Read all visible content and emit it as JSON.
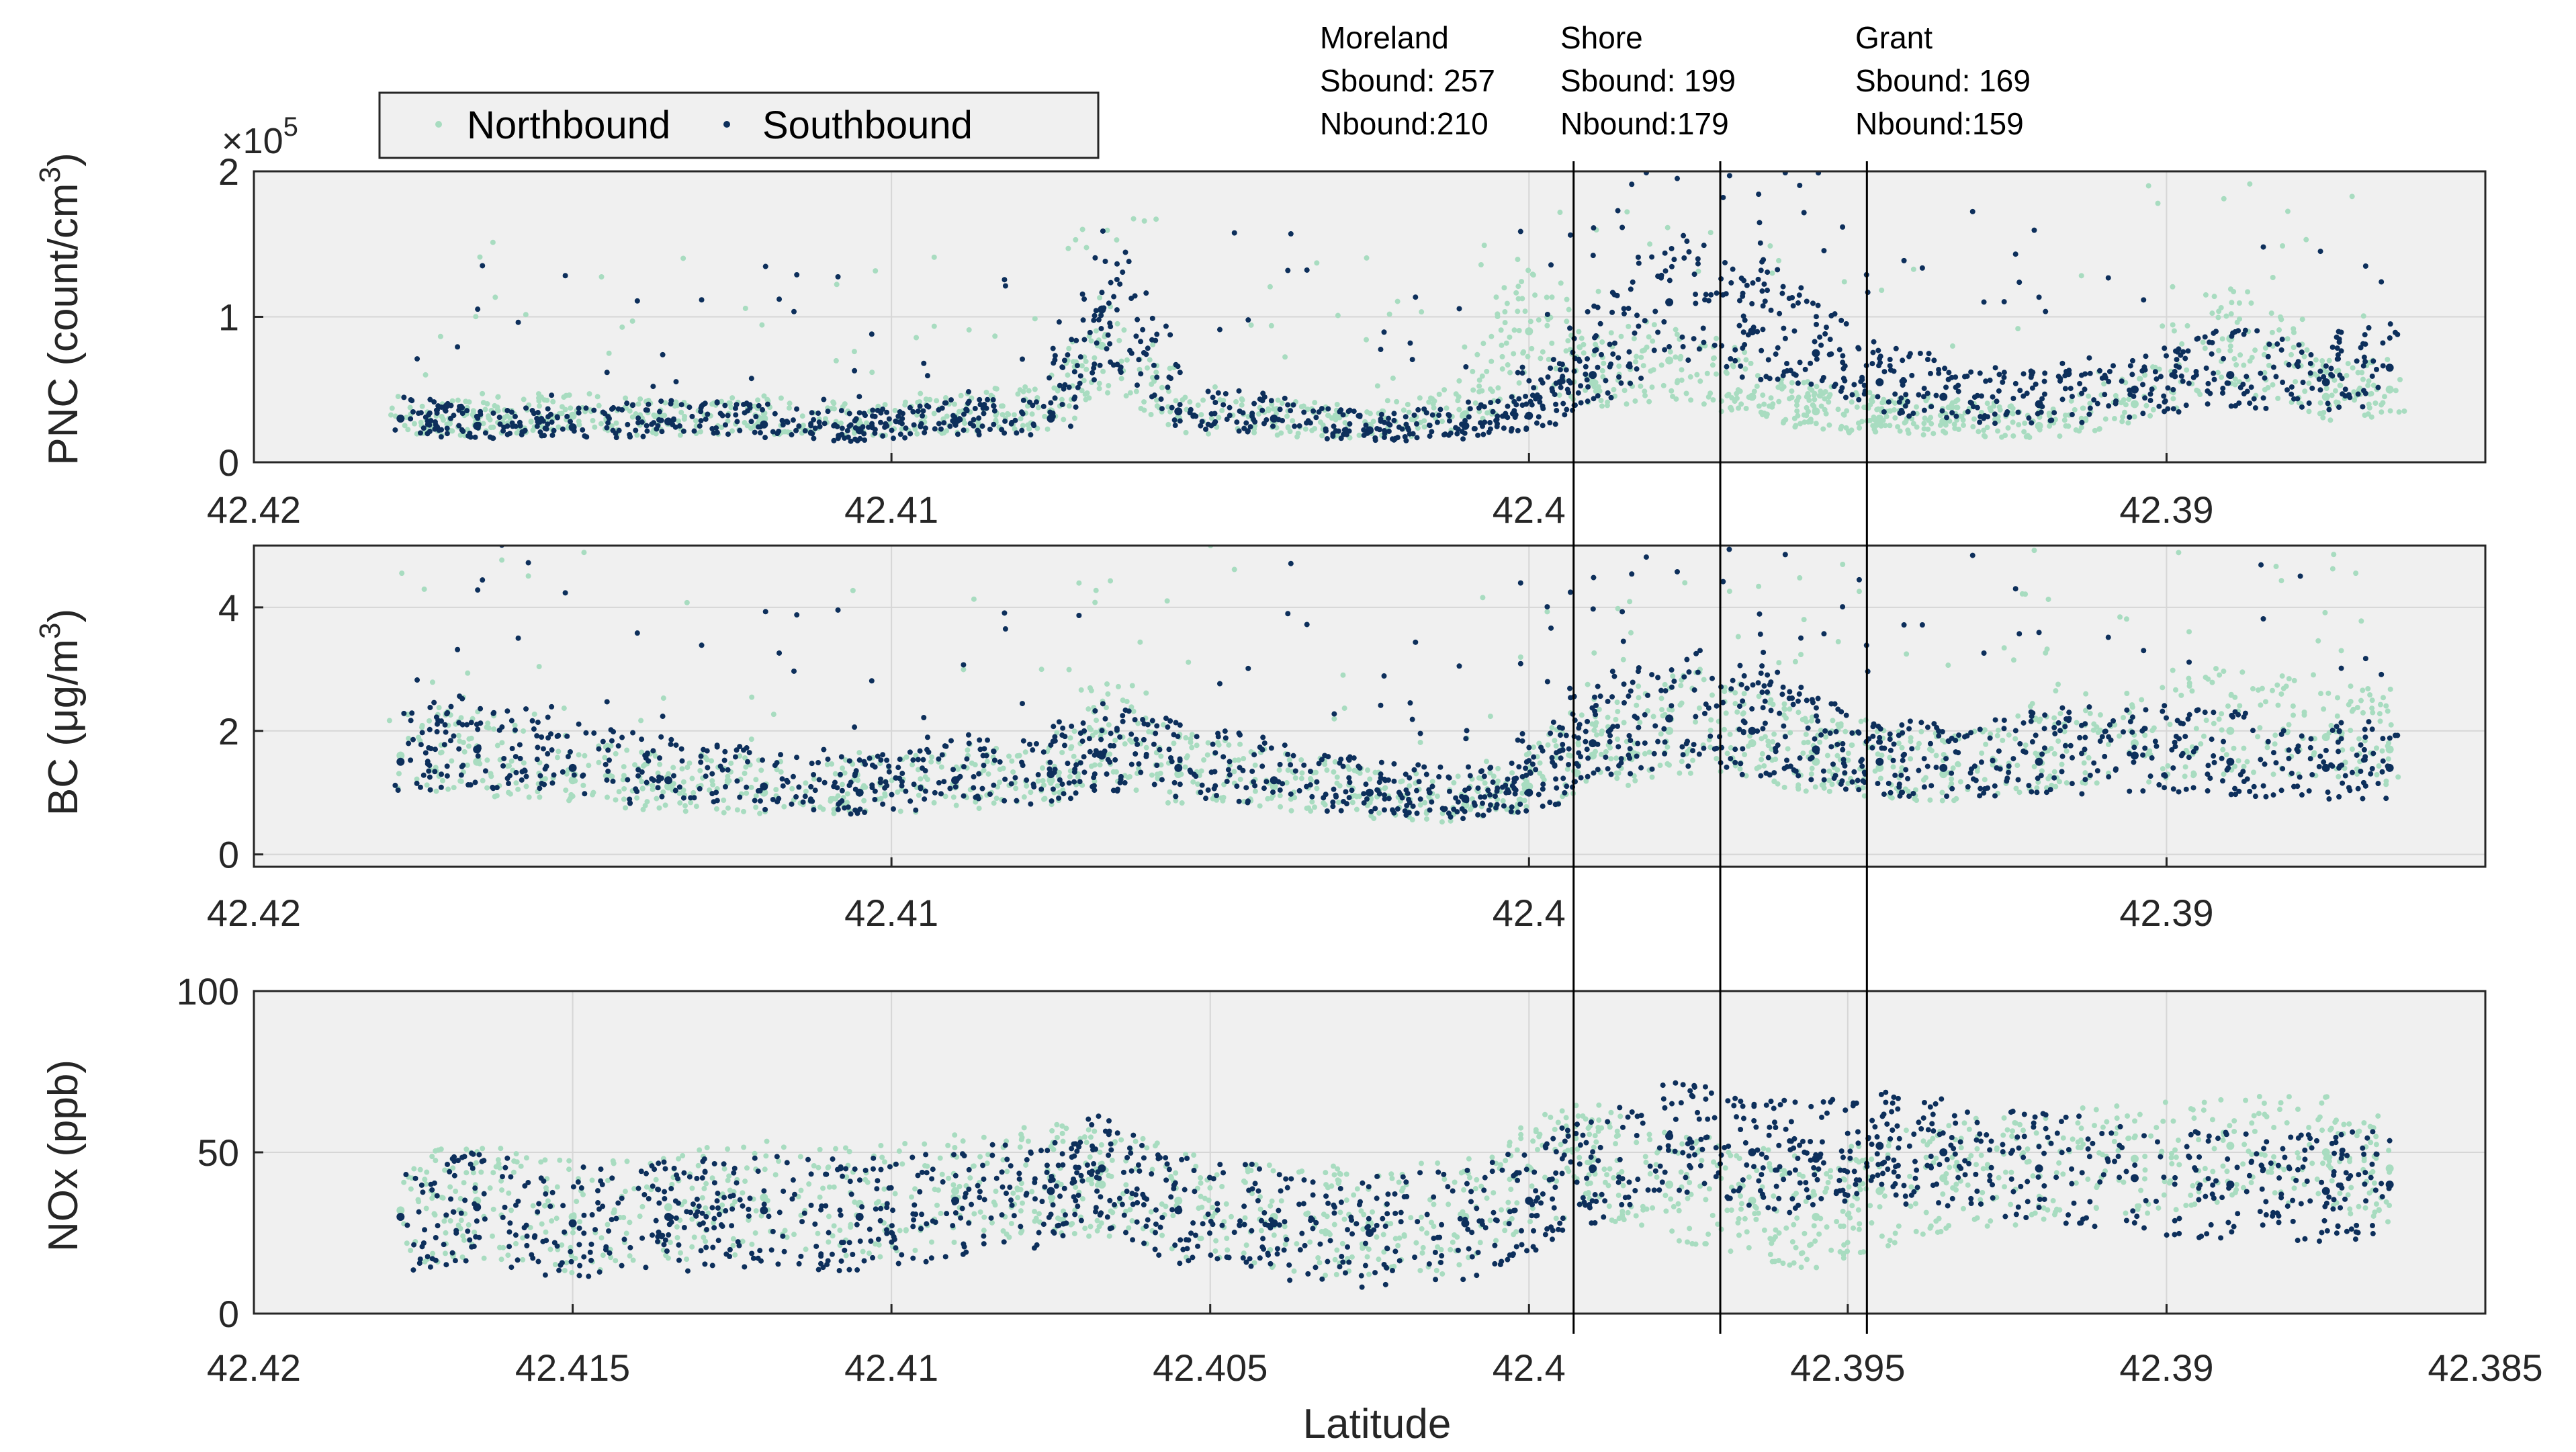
{
  "colors": {
    "north": "#a8dcc0",
    "south": "#0d2f5b",
    "panel_bg": "#f0f0f0",
    "grid": "#d6d6d6",
    "axis": "#262626"
  },
  "legend": {
    "north_label": "Northbound",
    "south_label": "Southbound"
  },
  "xlabel": "Latitude",
  "annotations": [
    {
      "name": "Moreland",
      "line1": "Moreland",
      "line2": "Sbound: 257",
      "line3": "Nbound:210",
      "lat": 42.3993
    },
    {
      "name": "Shore",
      "line1": "Shore",
      "line2": "Sbound: 199",
      "line3": "Nbound:179",
      "lat": 42.397
    },
    {
      "name": "Grant",
      "line1": "Grant",
      "line2": "Sbound: 169",
      "line3": "Nbound:159",
      "lat": 42.3947
    }
  ],
  "chart_data": [
    {
      "type": "scatter",
      "name": "pnc",
      "title": "",
      "ylabel": "PNC (count/cm",
      "ylabel_sup": "3",
      "ylabel_close": ")",
      "exponent_base": "×10",
      "exponent_sup": "5",
      "xlim": [
        42.42,
        42.385
      ],
      "ylim": [
        0,
        2
      ],
      "x_ticks": [
        42.42,
        42.41,
        42.4,
        42.39
      ],
      "x_tick_labels": [
        "42.42",
        "42.41",
        "42.4",
        "42.39"
      ],
      "y_ticks": [
        0,
        1,
        2
      ],
      "y_tick_labels": [
        "0",
        "1",
        "2"
      ],
      "grid": true,
      "series": [
        {
          "name": "Northbound",
          "color": "#a8dcc0",
          "x": [
            42.4177,
            42.4165,
            42.415,
            42.4135,
            42.412,
            42.4105,
            42.409,
            42.4075,
            42.4067,
            42.4055,
            42.404,
            42.4025,
            42.401,
            42.4,
            42.399,
            42.3978,
            42.3965,
            42.3955,
            42.3945,
            42.3935,
            42.392,
            42.3905,
            42.389,
            42.3875,
            42.3865
          ],
          "values": [
            0.3,
            0.28,
            0.32,
            0.27,
            0.3,
            0.26,
            0.31,
            0.35,
            0.8,
            0.3,
            0.28,
            0.25,
            0.33,
            0.9,
            0.55,
            0.7,
            0.45,
            0.35,
            0.3,
            0.28,
            0.25,
            0.4,
            0.85,
            0.45,
            0.5
          ]
        },
        {
          "name": "Southbound",
          "color": "#0d2f5b",
          "x": [
            42.4177,
            42.4165,
            42.415,
            42.4135,
            42.412,
            42.4105,
            42.409,
            42.4075,
            42.4067,
            42.4055,
            42.404,
            42.4025,
            42.401,
            42.4,
            42.399,
            42.3978,
            42.3965,
            42.3955,
            42.3945,
            42.3935,
            42.392,
            42.3905,
            42.389,
            42.3875,
            42.3865
          ],
          "values": [
            0.3,
            0.25,
            0.24,
            0.28,
            0.26,
            0.22,
            0.28,
            0.3,
            1.05,
            0.35,
            0.3,
            0.22,
            0.25,
            0.32,
            0.6,
            1.1,
            0.9,
            0.75,
            0.55,
            0.45,
            0.4,
            0.5,
            0.6,
            0.55,
            0.65
          ]
        }
      ]
    },
    {
      "type": "scatter",
      "name": "bc",
      "title": "",
      "ylabel": "BC (μg/m",
      "ylabel_sup": "3",
      "ylabel_close": ")",
      "xlim": [
        42.42,
        42.385
      ],
      "ylim": [
        -0.2,
        5
      ],
      "x_ticks": [
        42.42,
        42.41,
        42.4,
        42.39
      ],
      "x_tick_labels": [
        "42.42",
        "42.41",
        "42.4",
        "42.39"
      ],
      "y_ticks": [
        0,
        2,
        4
      ],
      "y_tick_labels": [
        "0",
        "2",
        "4"
      ],
      "grid": true,
      "series": [
        {
          "name": "Northbound",
          "color": "#a8dcc0",
          "x": [
            42.4177,
            42.4165,
            42.415,
            42.4135,
            42.412,
            42.4105,
            42.409,
            42.4075,
            42.4067,
            42.4055,
            42.404,
            42.4025,
            42.401,
            42.4,
            42.399,
            42.3978,
            42.3965,
            42.3955,
            42.3945,
            42.3935,
            42.392,
            42.3905,
            42.389,
            42.3875,
            42.3865
          ],
          "values": [
            1.6,
            1.5,
            1.2,
            1.1,
            1.0,
            1.0,
            1.1,
            1.2,
            2.0,
            1.3,
            1.1,
            0.9,
            0.8,
            1.1,
            1.6,
            2.0,
            1.8,
            1.5,
            1.4,
            1.3,
            1.6,
            1.8,
            2.0,
            1.9,
            1.7
          ]
        },
        {
          "name": "Southbound",
          "color": "#0d2f5b",
          "x": [
            42.4177,
            42.4165,
            42.415,
            42.4135,
            42.412,
            42.4105,
            42.409,
            42.4075,
            42.4067,
            42.4055,
            42.404,
            42.4025,
            42.401,
            42.4,
            42.399,
            42.3978,
            42.3965,
            42.3955,
            42.3945,
            42.3935,
            42.392,
            42.3905,
            42.389,
            42.3875,
            42.3865
          ],
          "values": [
            1.5,
            1.7,
            1.4,
            1.2,
            1.1,
            1.0,
            1.2,
            1.3,
            1.6,
            1.4,
            1.2,
            1.0,
            0.9,
            1.0,
            1.8,
            2.2,
            2.0,
            1.7,
            1.5,
            1.4,
            1.5,
            1.6,
            1.5,
            1.4,
            1.4
          ]
        }
      ]
    },
    {
      "type": "scatter",
      "name": "nox",
      "title": "",
      "ylabel": "NOx (ppb)",
      "xlim": [
        42.42,
        42.385
      ],
      "ylim": [
        0,
        100
      ],
      "x_ticks": [
        42.42,
        42.415,
        42.41,
        42.405,
        42.4,
        42.395,
        42.39,
        42.385
      ],
      "x_tick_labels": [
        "42.42",
        "42.415",
        "42.41",
        "42.405",
        "42.4",
        "42.395",
        "42.39",
        "42.385"
      ],
      "y_ticks": [
        0,
        50,
        100
      ],
      "y_tick_labels": [
        "0",
        "50",
        "100"
      ],
      "grid": true,
      "series": [
        {
          "name": "Northbound",
          "color": "#a8dcc0",
          "x": [
            42.4177,
            42.4165,
            42.415,
            42.4135,
            42.412,
            42.4105,
            42.409,
            42.4075,
            42.4067,
            42.4055,
            42.404,
            42.4025,
            42.401,
            42.4,
            42.399,
            42.3978,
            42.3965,
            42.3955,
            42.3945,
            42.3935,
            42.392,
            42.3905,
            42.389,
            42.3875,
            42.3865
          ],
          "values": [
            32,
            35,
            30,
            33,
            36,
            34,
            38,
            42,
            40,
            35,
            30,
            28,
            30,
            45,
            48,
            40,
            35,
            30,
            38,
            42,
            45,
            48,
            52,
            50,
            45
          ]
        },
        {
          "name": "Southbound",
          "color": "#0d2f5b",
          "x": [
            42.4177,
            42.4165,
            42.415,
            42.4135,
            42.412,
            42.4105,
            42.409,
            42.4075,
            42.4067,
            42.4055,
            42.404,
            42.4025,
            42.401,
            42.4,
            42.399,
            42.3978,
            42.3965,
            42.3955,
            42.3945,
            42.3935,
            42.392,
            42.3905,
            42.389,
            42.3875,
            42.3865
          ],
          "values": [
            30,
            33,
            28,
            30,
            32,
            30,
            35,
            38,
            45,
            32,
            28,
            25,
            28,
            35,
            45,
            55,
            50,
            48,
            52,
            50,
            45,
            42,
            40,
            38,
            40
          ]
        }
      ]
    }
  ]
}
